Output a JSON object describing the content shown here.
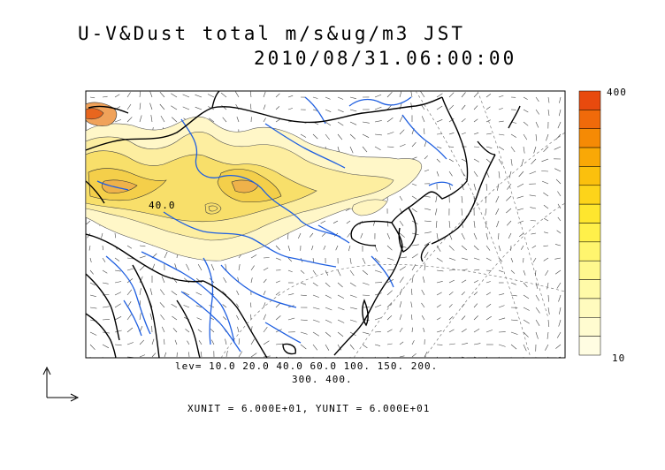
{
  "title": {
    "line1": "U-V&Dust total m/s&ug/m3 JST",
    "line2": "2010/08/31.06:00:00"
  },
  "map": {
    "contour_levels_line1": "lev= 10.0 20.0 40.0 60.0 100. 150. 200.",
    "contour_levels_line2": "300. 400.",
    "contour_label": "40.0",
    "units_text": "XUNIT = 6.000E+01, YUNIT = 6.000E+01"
  },
  "colorbar": {
    "max_label": "400",
    "min_label": "10",
    "colors": [
      "#e84a0e",
      "#f06a0a",
      "#f58a05",
      "#f9a806",
      "#fbc00d",
      "#fdd41a",
      "#fee62e",
      "#fff04a",
      "#fff56e",
      "#fff88e",
      "#fffaa8",
      "#fffbbe",
      "#fffcd0",
      "#fffde2"
    ]
  },
  "colors": {
    "coast": "#000000",
    "river": "#1f5fe0",
    "dust_light": "#fff5c0",
    "dust_mid": "#fbe98a",
    "dust_high": "#f6d84c",
    "dust_peak": "#f0a25a"
  }
}
